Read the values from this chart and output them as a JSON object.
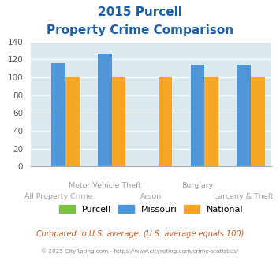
{
  "title_line1": "2015 Purcell",
  "title_line2": "Property Crime Comparison",
  "categories": [
    "All Property Crime",
    "Motor Vehicle Theft",
    "Arson",
    "Burglary",
    "Larceny & Theft"
  ],
  "purcell": [
    0,
    0,
    0,
    0,
    0
  ],
  "missouri": [
    116,
    127,
    0,
    114,
    114
  ],
  "national": [
    100,
    100,
    100,
    100,
    100
  ],
  "bar_color_purcell": "#7dc242",
  "bar_color_missouri": "#4f96d8",
  "bar_color_national": "#f5a623",
  "ylim": [
    0,
    140
  ],
  "yticks": [
    0,
    20,
    40,
    60,
    80,
    100,
    120,
    140
  ],
  "bg_color": "#dce9ef",
  "title_color": "#1a5fa8",
  "footer_text": "Compared to U.S. average. (U.S. average equals 100)",
  "credit_text": "© 2025 CityRating.com - https://www.cityrating.com/crime-statistics/",
  "footer_color": "#c05a2a",
  "credit_color": "#888888",
  "label_color": "#a0a0a0",
  "legend_labels": [
    "Purcell",
    "Missouri",
    "National"
  ],
  "row1_labels": {
    "1": "Motor Vehicle Theft",
    "3": "Burglary"
  },
  "row2_labels": {
    "0": "All Property Crime",
    "2": "Arson",
    "4": "Larceny & Theft"
  }
}
